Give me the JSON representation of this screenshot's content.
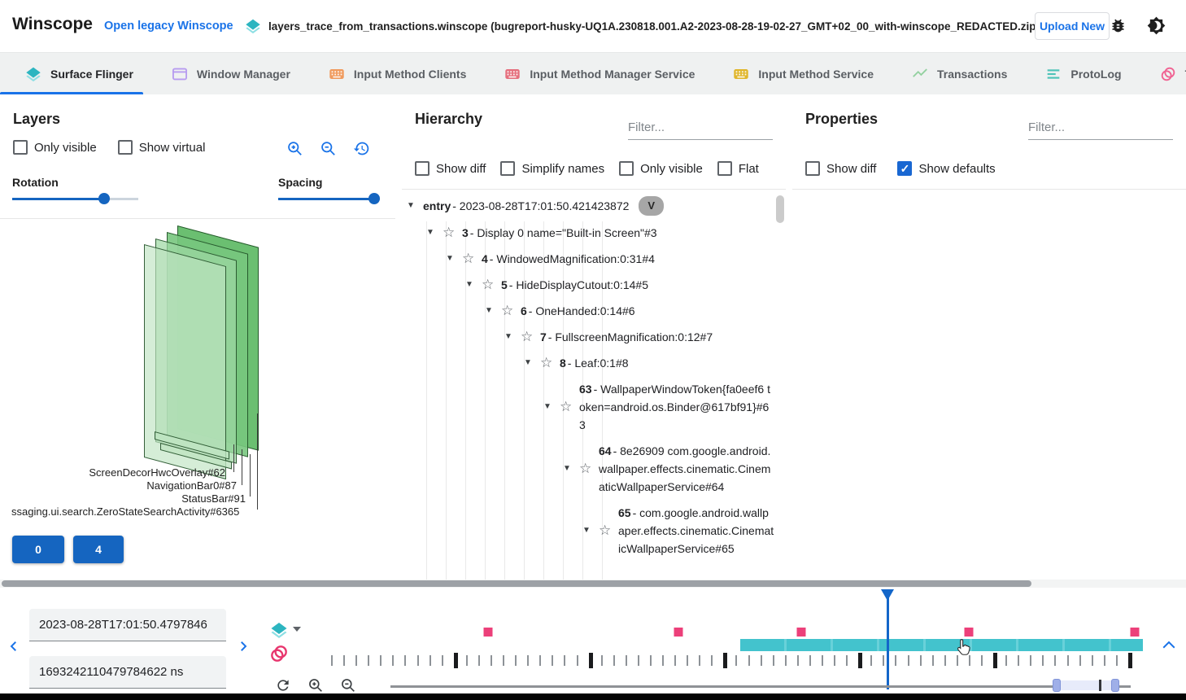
{
  "header": {
    "app_title": "Winscope",
    "legacy_link": "Open legacy Winscope",
    "file_label": "layers_trace_from_transactions.winscope (bugreport-husky-UQ1A.230818.001.A2-2023-08-28-19-02-27_GMT+02_00_with-winscope_REDACTED.zip)",
    "upload_label": "Upload New"
  },
  "tabs": [
    {
      "label": "Surface Flinger",
      "active": true
    },
    {
      "label": "Window Manager",
      "active": false
    },
    {
      "label": "Input Method Clients",
      "active": false
    },
    {
      "label": "Input Method Manager Service",
      "active": false
    },
    {
      "label": "Input Method Service",
      "active": false
    },
    {
      "label": "Transactions",
      "active": false
    },
    {
      "label": "ProtoLog",
      "active": false
    },
    {
      "label": "Transitions",
      "active": false
    }
  ],
  "layers": {
    "title": "Layers",
    "checkboxes": [
      {
        "label": "Only visible",
        "checked": false
      },
      {
        "label": "Show virtual",
        "checked": false
      }
    ],
    "rotation_label": "Rotation",
    "spacing_label": "Spacing",
    "layer_labels": [
      "ScreenDecorHwcOverlay#62",
      "NavigationBar0#87",
      "StatusBar#91",
      "ssaging.ui.search.ZeroStateSearchActivity#6365"
    ],
    "buttons": [
      "0",
      "4"
    ]
  },
  "hierarchy": {
    "title": "Hierarchy",
    "filter_placeholder": "Filter...",
    "checkboxes": [
      {
        "label": "Show diff",
        "checked": false
      },
      {
        "label": "Simplify names",
        "checked": false
      },
      {
        "label": "Only visible",
        "checked": false
      },
      {
        "label": "Flat",
        "checked": false
      }
    ],
    "rows": [
      {
        "prefix": "entry",
        "rest": "- 2023-08-28T17:01:50.421423872",
        "chip": "V",
        "level": 0
      },
      {
        "prefix": "3",
        "rest": "- Display 0 name=\"Built-in Screen\"#3",
        "level": 1
      },
      {
        "prefix": "4",
        "rest": "- WindowedMagnification:0:31#4",
        "level": 2
      },
      {
        "prefix": "5",
        "rest": "- HideDisplayCutout:0:14#5",
        "level": 3
      },
      {
        "prefix": "6",
        "rest": "- OneHanded:0:14#6",
        "level": 4
      },
      {
        "prefix": "7",
        "rest": "- FullscreenMagnification:0:12#7",
        "level": 5
      },
      {
        "prefix": "8",
        "rest": "- Leaf:0:1#8",
        "level": 6
      },
      {
        "prefix": "63",
        "rest": "- WallpaperWindowToken{fa0eef6 token=android.os.Binder@617bf91}#63",
        "level": 7
      },
      {
        "prefix": "64",
        "rest": "- 8e26909 com.google.android.wallpaper.effects.cinematic.CinematicWallpaperService#64",
        "level": 8
      },
      {
        "prefix": "65",
        "rest": "- com.google.android.wallpaper.effects.cinematic.CinematicWallpaperService#65",
        "level": 9
      }
    ]
  },
  "properties": {
    "title": "Properties",
    "filter_placeholder": "Filter...",
    "checkboxes": [
      {
        "label": "Show diff",
        "checked": false
      },
      {
        "label": "Show defaults",
        "checked": true
      }
    ]
  },
  "timeline": {
    "start_time": "2023-08-28T17:01:50.4797846",
    "start_ns": "1693242110479784622 ns",
    "markers_pct": [
      19.2,
      42.5,
      57.5,
      78.0,
      98.3
    ],
    "band": {
      "start_pct": 50.0,
      "end_pct": 99.3
    },
    "playhead_pct": 68.1,
    "ruler": {
      "count": 66,
      "thick_start": 10,
      "thick_every": 11
    }
  },
  "colors": {
    "accent_blue": "#1a73e8",
    "button_blue": "#1565c0",
    "marker_pink": "#ec407a",
    "band_teal": "#43c3cd",
    "layer_green": "#66bb6a"
  }
}
